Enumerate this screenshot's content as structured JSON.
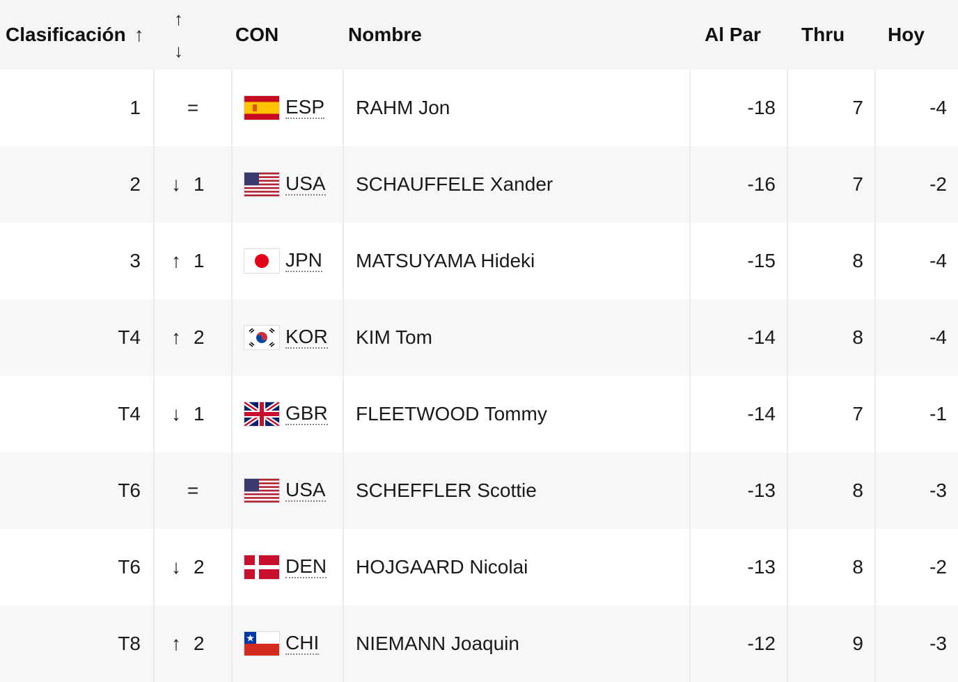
{
  "header": {
    "position": "Clasificación",
    "position_sort_icon": "↑",
    "movement_sort_up": "↑",
    "movement_sort_down": "↓",
    "nation": "CON",
    "name": "Nombre",
    "to_par": "Al Par",
    "thru": "Thru",
    "today": "Hoy"
  },
  "rows": [
    {
      "pos": "1",
      "move_arrow": "",
      "move_value": "=",
      "flag": "esp-flag-icon",
      "code": "ESP",
      "name": "RAHM Jon",
      "to_par": "-18",
      "thru": "7",
      "today": "-4"
    },
    {
      "pos": "2",
      "move_arrow": "↓",
      "move_value": "1",
      "flag": "usa-flag-icon",
      "code": "USA",
      "name": "SCHAUFFELE Xander",
      "to_par": "-16",
      "thru": "7",
      "today": "-2"
    },
    {
      "pos": "3",
      "move_arrow": "↑",
      "move_value": "1",
      "flag": "jpn-flag-icon",
      "code": "JPN",
      "name": "MATSUYAMA Hideki",
      "to_par": "-15",
      "thru": "8",
      "today": "-4"
    },
    {
      "pos": "T4",
      "move_arrow": "↑",
      "move_value": "2",
      "flag": "kor-flag-icon",
      "code": "KOR",
      "name": "KIM Tom",
      "to_par": "-14",
      "thru": "8",
      "today": "-4"
    },
    {
      "pos": "T4",
      "move_arrow": "↓",
      "move_value": "1",
      "flag": "gbr-flag-icon",
      "code": "GBR",
      "name": "FLEETWOOD Tommy",
      "to_par": "-14",
      "thru": "7",
      "today": "-1"
    },
    {
      "pos": "T6",
      "move_arrow": "",
      "move_value": "=",
      "flag": "usa-flag-icon",
      "code": "USA",
      "name": "SCHEFFLER Scottie",
      "to_par": "-13",
      "thru": "8",
      "today": "-3"
    },
    {
      "pos": "T6",
      "move_arrow": "↓",
      "move_value": "2",
      "flag": "den-flag-icon",
      "code": "DEN",
      "name": "HOJGAARD Nicolai",
      "to_par": "-13",
      "thru": "8",
      "today": "-2"
    },
    {
      "pos": "T8",
      "move_arrow": "↑",
      "move_value": "2",
      "flag": "chi-flag-icon",
      "code": "CHI",
      "name": "NIEMANN Joaquin",
      "to_par": "-12",
      "thru": "9",
      "today": "-3"
    }
  ]
}
